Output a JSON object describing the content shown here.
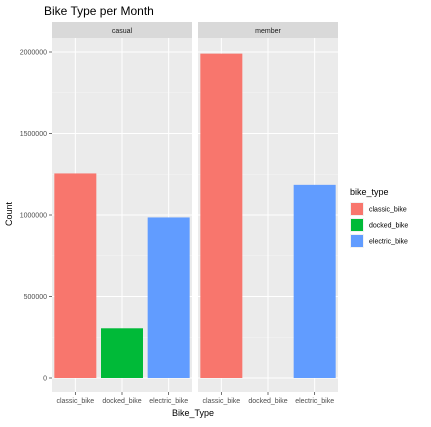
{
  "chart_data": {
    "type": "bar",
    "title": "Bike Type per Month",
    "xlabel": "Bike_Type",
    "ylabel": "Count",
    "ylim": [
      0,
      2100000
    ],
    "yticks": [
      0,
      500000,
      1000000,
      1500000,
      2000000
    ],
    "ytick_labels": [
      "0",
      "500000",
      "1000000",
      "1500000",
      "2000000"
    ],
    "categories": [
      "classic_bike",
      "docked_bike",
      "electric_bike"
    ],
    "facets": [
      {
        "label": "casual",
        "values": [
          1255000,
          305000,
          985000
        ]
      },
      {
        "label": "member",
        "values": [
          1990000,
          0,
          1185000
        ]
      }
    ],
    "legend": {
      "title": "bike_type",
      "placement": "right",
      "entries": [
        "classic_bike",
        "docked_bike",
        "electric_bike"
      ]
    },
    "colors": [
      "#F8766D",
      "#00BA38",
      "#619CFF"
    ],
    "grid": true
  }
}
